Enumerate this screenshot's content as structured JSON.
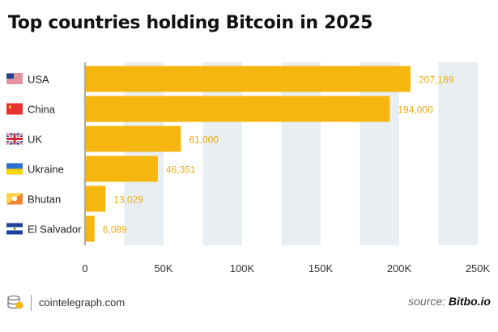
{
  "title": "Top countries holding Bitcoin in 2025",
  "footer": {
    "site": "cointelegraph.com",
    "source_prefix": "source:",
    "source_name": "Bitbo.io"
  },
  "colors": {
    "bar": "#f5b70f",
    "value_label": "#e9ac0e",
    "grid_band": "#e9eef2",
    "text": "#222222"
  },
  "chart_data": {
    "type": "bar",
    "orientation": "horizontal",
    "title": "Top countries holding Bitcoin in 2025",
    "categories": [
      "USA",
      "China",
      "UK",
      "Ukraine",
      "Bhutan",
      "El Salvador"
    ],
    "values": [
      207189,
      194000,
      61000,
      46351,
      13029,
      6089
    ],
    "value_labels": [
      "207,189",
      "194,000",
      "61,000",
      "46,351",
      "13,029",
      "6,089"
    ],
    "flag_icons": [
      "us-flag-icon",
      "china-flag-icon",
      "uk-flag-icon",
      "ukraine-flag-icon",
      "bhutan-flag-icon",
      "el-salvador-flag-icon"
    ],
    "xlim": [
      0,
      250000
    ],
    "x_ticks": [
      0,
      50000,
      100000,
      150000,
      200000,
      250000
    ],
    "x_tick_labels": [
      "0",
      "50K",
      "100K",
      "150K",
      "200K",
      "250K"
    ],
    "xlabel": "",
    "ylabel": "",
    "grid": "alternating vertical bands",
    "legend": "none"
  }
}
